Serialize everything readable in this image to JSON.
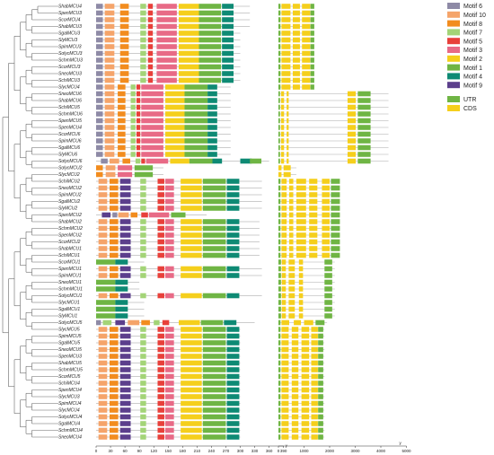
{
  "genes": [
    "ShabMCU4",
    "SpenMCU3",
    "ScorMCU4",
    "ShabMCU3",
    "SgalMCU3",
    "SlyMCU3",
    "SpimMCU3",
    "SolycMCU3",
    "SchmMCU3",
    "ScorMCU3",
    "SneoMCU3",
    "SchiMCU3",
    "SlycMCU4",
    "SneoMCU6",
    "ShabMCU6",
    "SchiMCU5",
    "SchmMCU6",
    "SpenMCU5",
    "SpenMCU4",
    "ScorMCU6",
    "SpimMCU6",
    "SgalMCU6",
    "SlyMCU6",
    "SolycMCU6",
    "SolycMCU2",
    "SlycMCU2",
    "SchiMCU2",
    "SneoMCU2",
    "SpimMCU2",
    "SgalMCU2",
    "SlyMCU2",
    "SpenMCU2",
    "ShabMCU2",
    "SchmMCU2",
    "SpenMCU2",
    "ScorMCU2",
    "ShabMCU1",
    "SchiMCU1",
    "ScorMCU1",
    "SpenMCU1",
    "SpimMCU1",
    "SneoMCU1",
    "SchmMCU1",
    "SolycMCU1",
    "SlycMCU1",
    "SgalMCU1",
    "SlyMCU1",
    "SolycMCU5",
    "SlycMCU5",
    "SpimMCU5",
    "SgalMCU5",
    "SneoMCU5",
    "SpenMCU3",
    "ShabMCU5",
    "SchmMCU5",
    "ScorMCU5",
    "SchiMCU4",
    "SpenMCU4",
    "SlycMCU3",
    "SpimMCU4",
    "SlycMCU4",
    "SolycMCU4",
    "SgalMCU4",
    "SchmMCU4",
    "SneoMCU4"
  ],
  "motif_axis": {
    "ticks": [
      "0",
      "30",
      "60",
      "90",
      "120",
      "150",
      "180",
      "210",
      "240",
      "270",
      "300",
      "330",
      "360",
      "390"
    ],
    "unit": "y"
  },
  "structure_axis": {
    "ticks": [
      "0",
      "1000",
      "2000",
      "3000",
      "4000",
      "5000"
    ],
    "unit": "y"
  },
  "motif_legend": [
    {
      "label": "Motif 6",
      "color": "#8e8aa6"
    },
    {
      "label": "Motif 10",
      "color": "#f5a46a"
    },
    {
      "label": "Motif 8",
      "color": "#f28c1e"
    },
    {
      "label": "Motif 7",
      "color": "#a3d477"
    },
    {
      "label": "Motif 5",
      "color": "#e8403a"
    },
    {
      "label": "Motif 3",
      "color": "#e86a86"
    },
    {
      "label": "Motif 2",
      "color": "#f5cf1c"
    },
    {
      "label": "Motif 1",
      "color": "#6fb544"
    },
    {
      "label": "Motif 4",
      "color": "#0e8a74"
    },
    {
      "label": "Motif 9",
      "color": "#5c3f8c"
    }
  ],
  "structure_legend": [
    {
      "label": "UTR",
      "color": "#6fb544"
    },
    {
      "label": "CDS",
      "color": "#f5cf1c"
    }
  ]
}
